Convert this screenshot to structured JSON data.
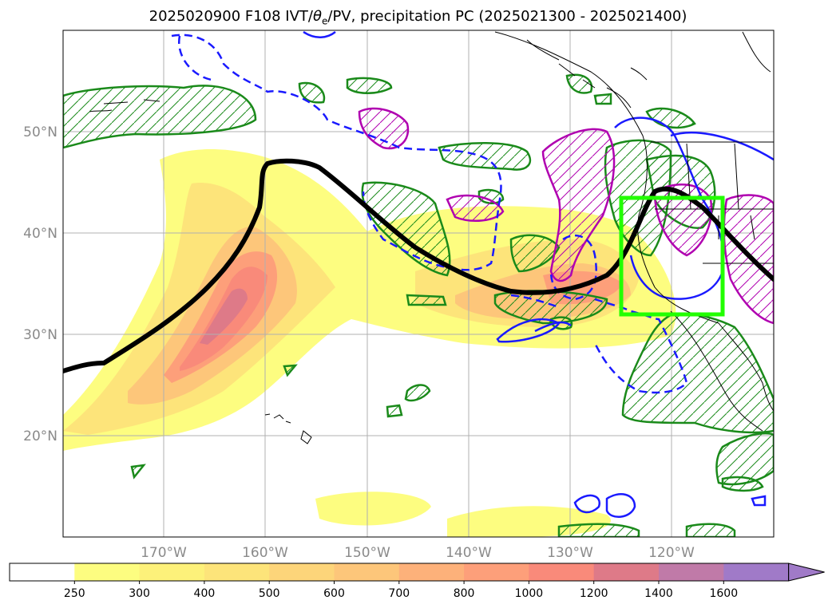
{
  "title": {
    "prefix": "2025020900 F108 IVT/",
    "theta": "θ",
    "theta_sub": "e",
    "suffix": "/PV, precipitation PC (2025021300 - 2025021400)"
  },
  "axes": {
    "lon_ticks": [
      "170°W",
      "160°W",
      "150°W",
      "140°W",
      "130°W",
      "120°W"
    ],
    "lat_ticks": [
      "50°N",
      "40°N",
      "30°N",
      "20°N"
    ]
  },
  "colorbar": {
    "levels": [
      "250",
      "300",
      "400",
      "500",
      "600",
      "700",
      "800",
      "1000",
      "1200",
      "1400",
      "1600"
    ],
    "colors": [
      "#ffffff",
      "#fdfd80",
      "#fdf17a",
      "#fde47a",
      "#fdd57a",
      "#fdc67a",
      "#fdb17a",
      "#fd9f7a",
      "#f98a7a",
      "#de7a88",
      "#c07aa8",
      "#a07ac8"
    ],
    "extend": "max"
  },
  "overlay_colors": {
    "ivt_fill": "#fdb17a",
    "thetae_contour": "#000000",
    "pv_positive": "#1a1aff",
    "precip_hatch": "#1a8a1a",
    "precip_neg": "#b000b0",
    "target_box": "#22ff00"
  }
}
